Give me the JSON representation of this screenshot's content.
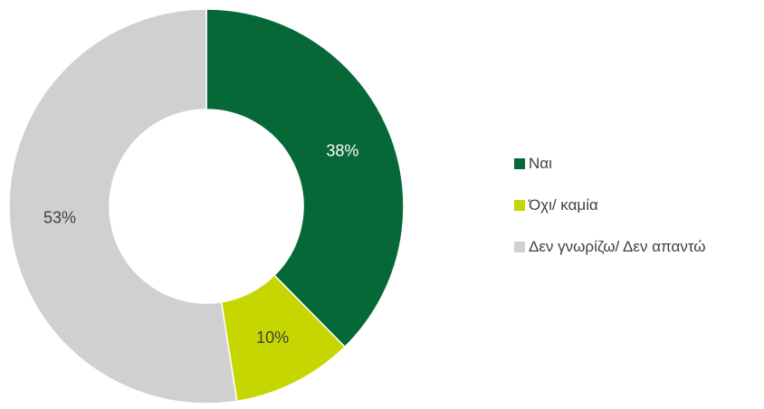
{
  "chart_data": {
    "type": "pie",
    "donut": true,
    "title": "",
    "categories": [
      "Ναι",
      "Όχι/ καμία",
      "Δεν γνωρίζω/ Δεν απαντώ"
    ],
    "values": [
      38,
      10,
      53
    ],
    "value_labels": [
      "38%",
      "10%",
      "53%"
    ],
    "colors": [
      "#066836",
      "#c5d600",
      "#d0d0d0"
    ],
    "legend_position": "right"
  }
}
